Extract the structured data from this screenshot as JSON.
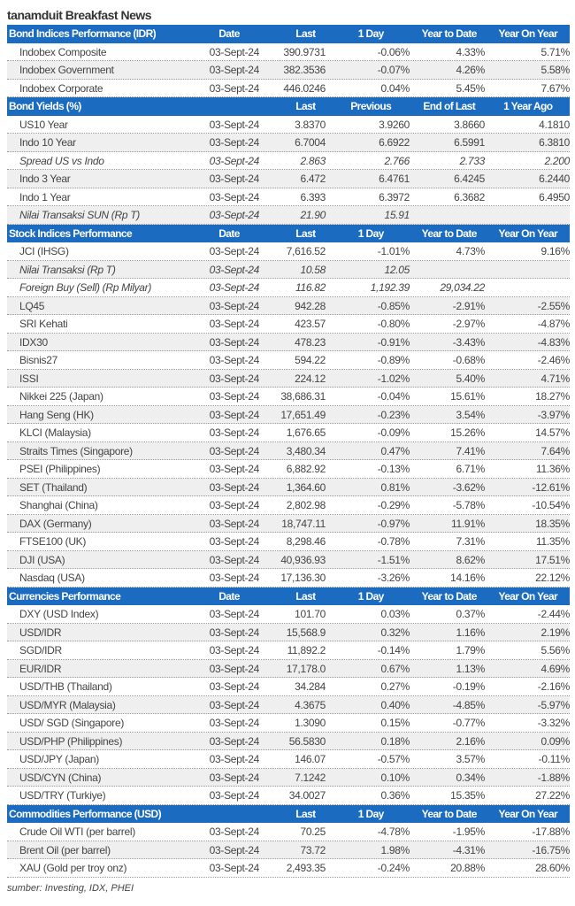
{
  "title": "tanamduit Breakfast News",
  "colors": {
    "header_bg": "#1b6cc0",
    "alt_row": "#efefef"
  },
  "sections": [
    {
      "header": [
        "Bond Indices Performance (IDR)",
        "Date",
        "Last",
        "1 Day",
        "Year to Date",
        "Year On Year"
      ],
      "rows": [
        [
          "Indobex Composite",
          "03-Sept-24",
          "390.9731",
          "-0.06%",
          "4.33%",
          "5.71%"
        ],
        [
          "Indobex Government",
          "03-Sept-24",
          "382.3536",
          "-0.07%",
          "4.26%",
          "5.58%"
        ],
        [
          "Indobex Corporate",
          "03-Sept-24",
          "446.0246",
          "0.04%",
          "5.45%",
          "7.67%"
        ]
      ]
    },
    {
      "header": [
        "Bond Yields (%)",
        "",
        "Last",
        "Previous",
        "End of Last Year",
        "1 Year Ago"
      ],
      "rows": [
        [
          "US10 Year",
          "03-Sept-24",
          "3.8370",
          "3.9260",
          "3.8660",
          "4.1810"
        ],
        [
          "Indo 10 Year",
          "03-Sept-24",
          "6.7004",
          "6.6922",
          "6.5991",
          "6.3810"
        ],
        [
          "Spread US vs Indo",
          "03-Sept-24",
          "2.863",
          "2.766",
          "2.733",
          "2.200"
        ],
        [
          "Indo 3 Year",
          "03-Sept-24",
          "6.472",
          "6.4761",
          "6.4245",
          "6.2440"
        ],
        [
          "Indo 1 Year",
          "03-Sept-24",
          "6.393",
          "6.3972",
          "6.3682",
          "6.4950"
        ],
        [
          "Nilai Transaksi SUN (Rp T)",
          "03-Sept-24",
          "21.90",
          "15.91",
          "",
          ""
        ]
      ],
      "italic_rows": [
        2,
        5
      ]
    },
    {
      "header": [
        "Stock Indices Performance",
        "Date",
        "Last",
        "1 Day",
        "Year to Date",
        "Year On Year"
      ],
      "rows": [
        [
          "JCI (IHSG)",
          "03-Sept-24",
          "7,616.52",
          "-1.01%",
          "4.73%",
          "9.16%"
        ],
        [
          "Nilai Transaksi (Rp T)",
          "03-Sept-24",
          "10.58",
          "12.05",
          "",
          ""
        ],
        [
          "Foreign Buy (Sell) (Rp Milyar)",
          "03-Sept-24",
          "116.82",
          "1,192.39",
          "29,034.22",
          ""
        ],
        [
          "LQ45",
          "03-Sept-24",
          "942.28",
          "-0.85%",
          "-2.91%",
          "-2.55%"
        ],
        [
          "SRI Kehati",
          "03-Sept-24",
          "423.57",
          "-0.80%",
          "-2.97%",
          "-4.87%"
        ],
        [
          "IDX30",
          "03-Sept-24",
          "478.23",
          "-0.91%",
          "-3.43%",
          "-4.83%"
        ],
        [
          "Bisnis27",
          "03-Sept-24",
          "594.22",
          "-0.89%",
          "-0.68%",
          "-2.46%"
        ],
        [
          "ISSI",
          "03-Sept-24",
          "224.12",
          "-1.02%",
          "5.40%",
          "4.71%"
        ],
        [
          "Nikkei 225 (Japan)",
          "03-Sept-24",
          "38,686.31",
          "-0.04%",
          "15.61%",
          "18.27%"
        ],
        [
          "Hang Seng (HK)",
          "03-Sept-24",
          "17,651.49",
          "-0.23%",
          "3.54%",
          "-3.97%"
        ],
        [
          "KLCI (Malaysia)",
          "03-Sept-24",
          "1,676.65",
          "-0.09%",
          "15.26%",
          "14.57%"
        ],
        [
          "Straits Times (Singapore)",
          "03-Sept-24",
          "3,480.34",
          "0.47%",
          "7.41%",
          "7.64%"
        ],
        [
          "PSEI (Philippines)",
          "03-Sept-24",
          "6,882.92",
          "-0.13%",
          "6.71%",
          "11.36%"
        ],
        [
          "SET (Thailand)",
          "03-Sept-24",
          "1,364.60",
          "0.81%",
          "-3.62%",
          "-12.61%"
        ],
        [
          "Shanghai (China)",
          "03-Sept-24",
          "2,802.98",
          "-0.29%",
          "-5.78%",
          "-10.54%"
        ],
        [
          "DAX (Germany)",
          "03-Sept-24",
          "18,747.11",
          "-0.97%",
          "11.91%",
          "18.35%"
        ],
        [
          "FTSE100 (UK)",
          "03-Sept-24",
          "8,298.46",
          "-0.78%",
          "7.31%",
          "11.35%"
        ],
        [
          "DJI (USA)",
          "03-Sept-24",
          "40,936.93",
          "-1.51%",
          "8.62%",
          "17.51%"
        ],
        [
          "Nasdaq (USA)",
          "03-Sept-24",
          "17,136.30",
          "-3.26%",
          "14.16%",
          "22.12%"
        ]
      ],
      "italic_rows": [
        1,
        2
      ]
    },
    {
      "header": [
        "Currencies Performance",
        "Date",
        "Last",
        "1 Day",
        "Year to Date",
        "Year On Year"
      ],
      "rows": [
        [
          "DXY (USD Index)",
          "03-Sept-24",
          "101.70",
          "0.03%",
          "0.37%",
          "-2.44%"
        ],
        [
          "USD/IDR",
          "03-Sept-24",
          "15,568.9",
          "0.32%",
          "1.16%",
          "2.19%"
        ],
        [
          "SGD/IDR",
          "03-Sept-24",
          "11,892.2",
          "-0.14%",
          "1.79%",
          "5.56%"
        ],
        [
          "EUR/IDR",
          "03-Sept-24",
          "17,178.0",
          "0.67%",
          "1.13%",
          "4.69%"
        ],
        [
          "USD/THB (Thailand)",
          "03-Sept-24",
          "34.284",
          "0.27%",
          "-0.19%",
          "-2.16%"
        ],
        [
          "USD/MYR (Malaysia)",
          "03-Sept-24",
          "4.3675",
          "0.40%",
          "-4.85%",
          "-5.97%"
        ],
        [
          "USD/ SGD (Singapore)",
          "03-Sept-24",
          "1.3090",
          "0.15%",
          "-0.77%",
          "-3.32%"
        ],
        [
          "USD/PHP (Philippines)",
          "03-Sept-24",
          "56.5830",
          "0.18%",
          "2.16%",
          "0.09%"
        ],
        [
          "USD/JPY (Japan)",
          "03-Sept-24",
          "146.07",
          "-0.57%",
          "3.57%",
          "-0.11%"
        ],
        [
          "USD/CYN (China)",
          "03-Sept-24",
          "7.1242",
          "0.10%",
          "0.34%",
          "-1.88%"
        ],
        [
          "USD/TRY (Turkiye)",
          "03-Sept-24",
          "34.0027",
          "0.36%",
          "15.35%",
          "27.22%"
        ]
      ]
    },
    {
      "header": [
        "Commodities Performance (USD)",
        "",
        "Last",
        "1 Day",
        "Year to Date",
        "Year On Year"
      ],
      "rows": [
        [
          "Crude Oil WTI (per barrel)",
          "03-Sept-24",
          "70.25",
          "-4.78%",
          "-1.95%",
          "-17.88%"
        ],
        [
          "Brent Oil (per barrel)",
          "03-Sept-24",
          "73.72",
          "1.98%",
          "-4.31%",
          "-16.75%"
        ],
        [
          "XAU (Gold per troy onz)",
          "03-Sept-24",
          "2,493.35",
          "-0.24%",
          "20.88%",
          "28.60%"
        ]
      ]
    }
  ],
  "source": "sumber: Investing, IDX, PHEI"
}
